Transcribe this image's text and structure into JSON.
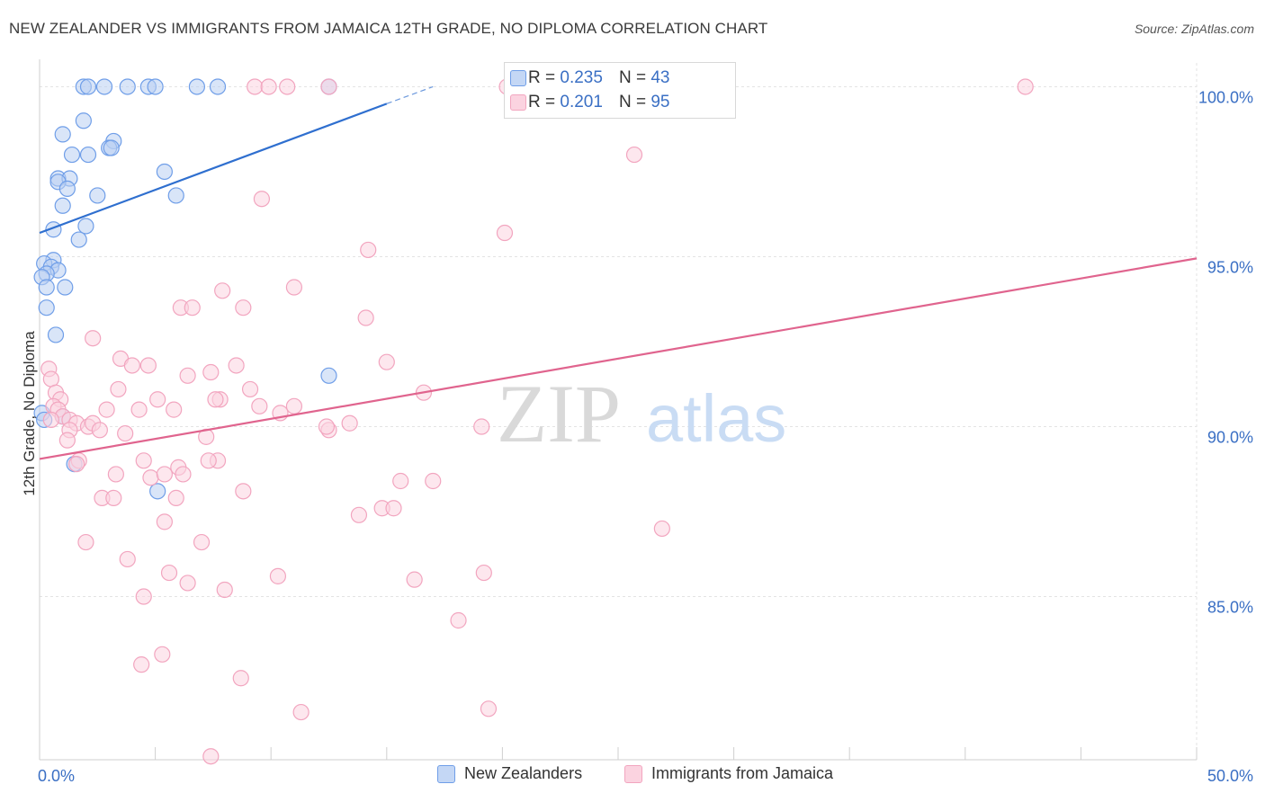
{
  "header": {
    "title": "NEW ZEALANDER VS IMMIGRANTS FROM JAMAICA 12TH GRADE, NO DIPLOMA CORRELATION CHART",
    "source": "Source: ZipAtlas.com"
  },
  "watermark": {
    "zip": "ZIP",
    "atlas": "atlas"
  },
  "stats": [
    {
      "r_label": "R =",
      "r_value": "0.235",
      "n_label": "N =",
      "n_value": "43",
      "color": "#6f9ee8"
    },
    {
      "r_label": "R =",
      "r_value": "0.201",
      "n_label": "N =",
      "n_value": "95",
      "color": "#f2a5bf"
    }
  ],
  "chart_data": {
    "type": "scatter",
    "title": "NEW ZEALANDER VS IMMIGRANTS FROM JAMAICA 12TH GRADE, NO DIPLOMA CORRELATION CHART",
    "xlabel": "",
    "ylabel": "12th Grade, No Diploma",
    "xlim": [
      0,
      50
    ],
    "ylim": [
      80.2,
      100.7
    ],
    "x_tick_labels": [
      {
        "value": 0,
        "label": "0.0%"
      },
      {
        "value": 50,
        "label": "50.0%"
      }
    ],
    "y_tick_labels": [
      {
        "value": 100,
        "label": "100.0%"
      },
      {
        "value": 95,
        "label": "95.0%"
      },
      {
        "value": 90,
        "label": "90.0%"
      },
      {
        "value": 85,
        "label": "85.0%"
      }
    ],
    "grid": true,
    "legend_position": "bottom",
    "series": [
      {
        "name": "New Zealanders",
        "color": "#6f9ee8",
        "fill": "#b9cff3",
        "trend": {
          "x0": 0,
          "y0": 95.7,
          "x1": 15,
          "y1": 99.5,
          "dash_to_x": 17,
          "dash_to_y": 100.0,
          "color": "#2f6fcf"
        },
        "points": [
          [
            1.9,
            100.0
          ],
          [
            2.1,
            100.0
          ],
          [
            2.8,
            100.0
          ],
          [
            3.8,
            100.0
          ],
          [
            4.7,
            100.0
          ],
          [
            5.0,
            100.0
          ],
          [
            6.8,
            100.0
          ],
          [
            7.7,
            100.0
          ],
          [
            12.5,
            100.0
          ],
          [
            1.9,
            99.0
          ],
          [
            1.0,
            98.6
          ],
          [
            3.2,
            98.4
          ],
          [
            3.0,
            98.2
          ],
          [
            3.1,
            98.2
          ],
          [
            1.4,
            98.0
          ],
          [
            2.1,
            98.0
          ],
          [
            5.4,
            97.5
          ],
          [
            0.8,
            97.3
          ],
          [
            1.3,
            97.3
          ],
          [
            0.8,
            97.2
          ],
          [
            1.2,
            97.0
          ],
          [
            2.5,
            96.8
          ],
          [
            5.9,
            96.8
          ],
          [
            1.0,
            96.5
          ],
          [
            2.0,
            95.9
          ],
          [
            0.6,
            95.8
          ],
          [
            1.7,
            95.5
          ],
          [
            0.6,
            94.9
          ],
          [
            0.2,
            94.8
          ],
          [
            0.5,
            94.7
          ],
          [
            0.8,
            94.6
          ],
          [
            0.3,
            94.5
          ],
          [
            0.1,
            94.4
          ],
          [
            0.3,
            94.1
          ],
          [
            1.1,
            94.1
          ],
          [
            0.3,
            93.5
          ],
          [
            0.7,
            92.7
          ],
          [
            12.5,
            91.5
          ],
          [
            0.1,
            90.4
          ],
          [
            1.0,
            90.3
          ],
          [
            1.5,
            88.9
          ],
          [
            5.1,
            88.1
          ],
          [
            0.2,
            90.2
          ]
        ]
      },
      {
        "name": "Immigrants from Jamaica",
        "color": "#f2a5bf",
        "fill": "#fbd3e0",
        "trend": {
          "x0": 0,
          "y0": 89.05,
          "x1": 50,
          "y1": 94.95,
          "color": "#e0648e"
        },
        "points": [
          [
            9.3,
            100.0
          ],
          [
            9.9,
            100.0
          ],
          [
            10.7,
            100.0
          ],
          [
            12.5,
            100.0
          ],
          [
            20.2,
            100.0
          ],
          [
            42.6,
            100.0
          ],
          [
            25.7,
            98.0
          ],
          [
            9.6,
            96.7
          ],
          [
            20.1,
            95.7
          ],
          [
            14.2,
            95.2
          ],
          [
            7.9,
            94.0
          ],
          [
            11.0,
            94.1
          ],
          [
            6.1,
            93.5
          ],
          [
            6.6,
            93.5
          ],
          [
            8.8,
            93.5
          ],
          [
            14.1,
            93.2
          ],
          [
            2.3,
            92.6
          ],
          [
            3.5,
            92.0
          ],
          [
            4.0,
            91.8
          ],
          [
            4.7,
            91.8
          ],
          [
            8.5,
            91.8
          ],
          [
            15.0,
            91.9
          ],
          [
            0.4,
            91.7
          ],
          [
            0.5,
            91.4
          ],
          [
            6.4,
            91.5
          ],
          [
            7.4,
            91.6
          ],
          [
            3.4,
            91.1
          ],
          [
            9.1,
            91.1
          ],
          [
            0.7,
            91.0
          ],
          [
            0.9,
            90.8
          ],
          [
            0.6,
            90.6
          ],
          [
            0.8,
            90.5
          ],
          [
            5.1,
            90.8
          ],
          [
            7.8,
            90.8
          ],
          [
            7.6,
            90.8
          ],
          [
            9.5,
            90.6
          ],
          [
            11.0,
            90.6
          ],
          [
            16.6,
            91.0
          ],
          [
            2.9,
            90.5
          ],
          [
            4.3,
            90.5
          ],
          [
            5.8,
            90.5
          ],
          [
            10.4,
            90.4
          ],
          [
            1.0,
            90.3
          ],
          [
            1.3,
            90.2
          ],
          [
            1.6,
            90.1
          ],
          [
            2.1,
            90.0
          ],
          [
            2.3,
            90.1
          ],
          [
            2.6,
            89.9
          ],
          [
            1.3,
            89.9
          ],
          [
            3.7,
            89.8
          ],
          [
            7.2,
            89.7
          ],
          [
            12.5,
            89.9
          ],
          [
            12.4,
            90.0
          ],
          [
            19.1,
            90.0
          ],
          [
            1.2,
            89.6
          ],
          [
            1.7,
            89.0
          ],
          [
            4.5,
            89.0
          ],
          [
            6.0,
            88.8
          ],
          [
            7.7,
            89.0
          ],
          [
            7.3,
            89.0
          ],
          [
            1.6,
            88.9
          ],
          [
            3.3,
            88.6
          ],
          [
            4.8,
            88.5
          ],
          [
            5.4,
            88.6
          ],
          [
            8.8,
            88.1
          ],
          [
            15.6,
            88.4
          ],
          [
            17.0,
            88.4
          ],
          [
            2.7,
            87.9
          ],
          [
            3.2,
            87.9
          ],
          [
            5.9,
            87.9
          ],
          [
            13.8,
            87.4
          ],
          [
            14.8,
            87.6
          ],
          [
            15.3,
            87.6
          ],
          [
            26.9,
            87.0
          ],
          [
            5.4,
            87.2
          ],
          [
            2.0,
            86.6
          ],
          [
            7.0,
            86.6
          ],
          [
            3.8,
            86.1
          ],
          [
            5.6,
            85.7
          ],
          [
            10.3,
            85.6
          ],
          [
            16.2,
            85.5
          ],
          [
            19.2,
            85.7
          ],
          [
            6.4,
            85.4
          ],
          [
            8.0,
            85.2
          ],
          [
            4.5,
            85.0
          ],
          [
            18.1,
            84.3
          ],
          [
            5.3,
            83.3
          ],
          [
            4.4,
            83.0
          ],
          [
            8.7,
            82.6
          ],
          [
            11.3,
            81.6
          ],
          [
            19.4,
            81.7
          ],
          [
            7.4,
            80.3
          ],
          [
            0.5,
            90.2
          ],
          [
            13.4,
            90.1
          ],
          [
            6.2,
            88.6
          ]
        ]
      }
    ]
  }
}
